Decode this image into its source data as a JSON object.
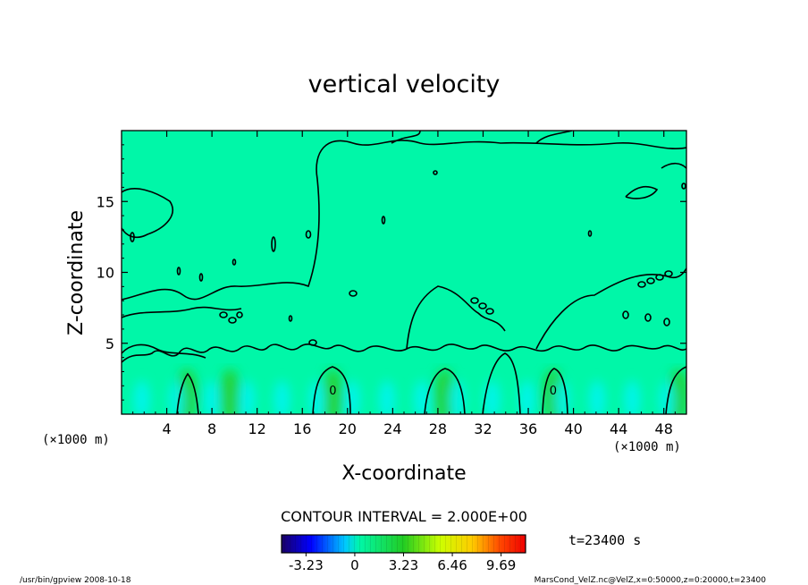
{
  "chart_data": {
    "type": "heatmap",
    "title": "vertical velocity",
    "xlabel": "X-coordinate",
    "ylabel": "Z-coordinate",
    "x_unit": "(×1000 m)",
    "x_unit_right": "(×1000 m)",
    "xlim": [
      0,
      50
    ],
    "ylim": [
      0,
      20
    ],
    "x_ticks": [
      4,
      8,
      12,
      16,
      20,
      24,
      28,
      32,
      36,
      40,
      44,
      48
    ],
    "y_ticks": [
      5,
      10,
      15
    ],
    "contour_interval": "CONTOUR INTERVAL = 2.000E+00",
    "contour_labels": [
      {
        "x": 18.7,
        "y": 1.7,
        "text": "0"
      },
      {
        "x": 38.2,
        "y": 1.7,
        "text": "0"
      }
    ],
    "colorbar": {
      "range": [
        -4.85,
        11.31
      ],
      "tick_values": [
        -3.23,
        0,
        3.23,
        6.46,
        9.69
      ],
      "tick_labels": [
        "-3.23",
        "0",
        "3.23",
        "6.46",
        "9.69"
      ]
    },
    "updraft_columns_x": [
      5.8,
      9.6,
      18.7,
      28.6,
      38.2,
      49.3
    ],
    "colors": {
      "background_field": "#00f7a8",
      "updraft": "#22d43c",
      "downdraft": "#00f4ff"
    }
  },
  "time_label": "t=23400 s",
  "footer_left": "/usr/bin/gpview  2008-10-18",
  "footer_right": "MarsCond_VelZ.nc@VelZ,x=0:50000,z=0:20000,t=23400"
}
